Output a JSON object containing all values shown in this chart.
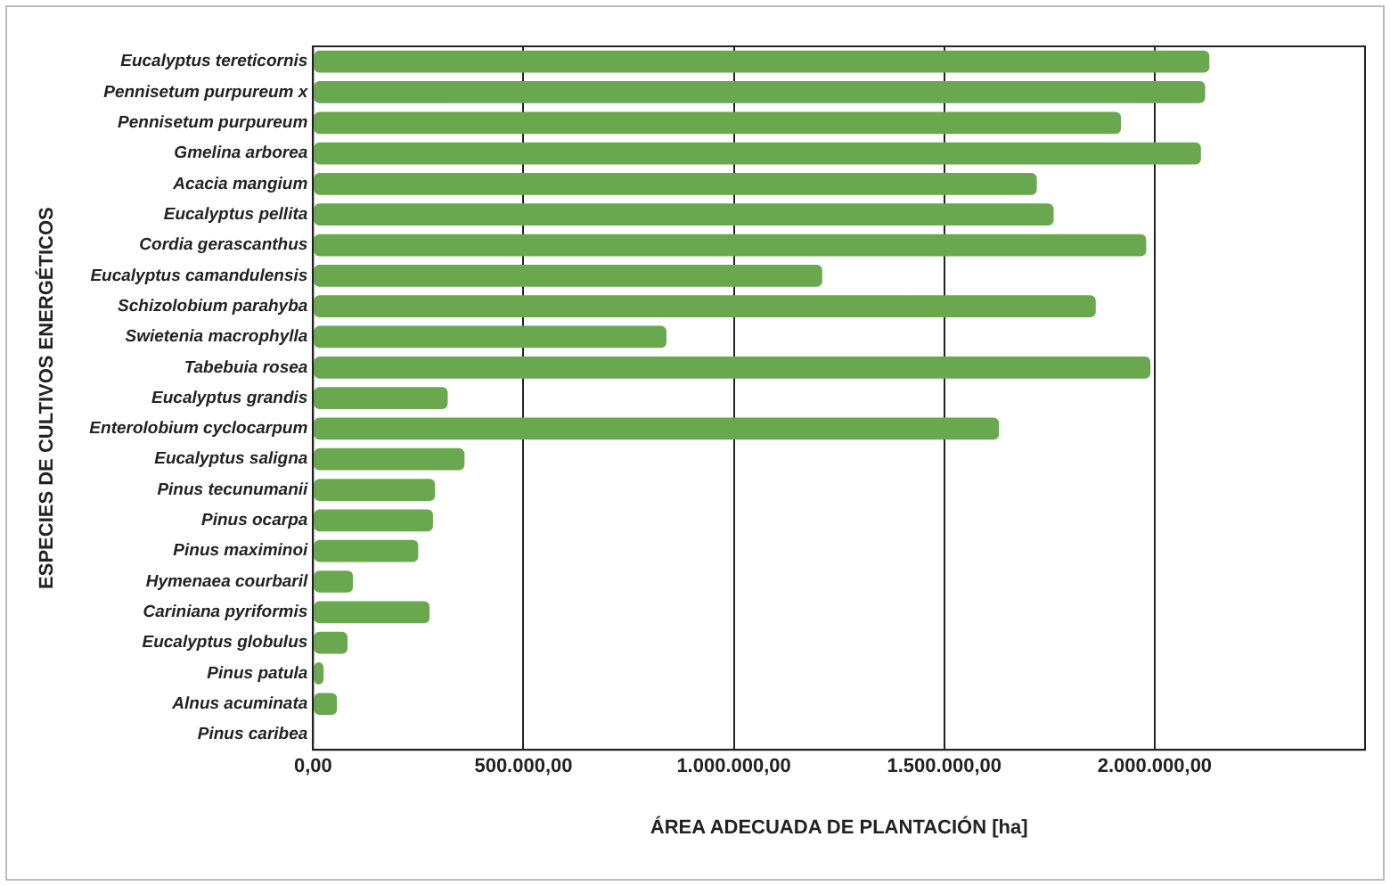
{
  "chart_data": {
    "type": "bar",
    "orientation": "horizontal",
    "xlabel": "ÁREA ADECUADA DE PLANTACIÓN [ha]",
    "ylabel": "ESPECIES DE CULTIVOS ENERGÉTICOS",
    "categories": [
      "Eucalyptus tereticornis",
      "Pennisetum purpureum x",
      "Pennisetum purpureum",
      "Gmelina arborea",
      "Acacia mangium",
      "Eucalyptus pellita",
      "Cordia gerascanthus",
      "Eucalyptus camandulensis",
      "Schizolobium parahyba",
      "Swietenia macrophylla",
      "Tabebuia rosea",
      "Eucalyptus grandis",
      "Enterolobium cyclocarpum",
      "Eucalyptus saligna",
      "Pinus tecunumanii",
      "Pinus ocarpa",
      "Pinus maximinoi",
      "Hymenaea courbaril",
      "Cariniana pyriformis",
      "Eucalyptus globulus",
      "Pinus patula",
      "Alnus acuminata",
      "Pinus caribea"
    ],
    "values": [
      2130000,
      2120000,
      1920000,
      2110000,
      1720000,
      1760000,
      1980000,
      1210000,
      1860000,
      840000,
      1990000,
      320000,
      1630000,
      360000,
      290000,
      285000,
      250000,
      95000,
      277000,
      82000,
      25000,
      57000,
      0
    ],
    "color": "#6aa84f",
    "xlim": [
      0,
      2500000
    ],
    "xticks": [
      {
        "value": 0,
        "label": "0,00"
      },
      {
        "value": 500000,
        "label": "500.000,00"
      },
      {
        "value": 1000000,
        "label": "1.000.000,00"
      },
      {
        "value": 1500000,
        "label": "1.500.000,00"
      },
      {
        "value": 2000000,
        "label": "2.000.000,00"
      }
    ],
    "grid": "x",
    "legend": false
  }
}
